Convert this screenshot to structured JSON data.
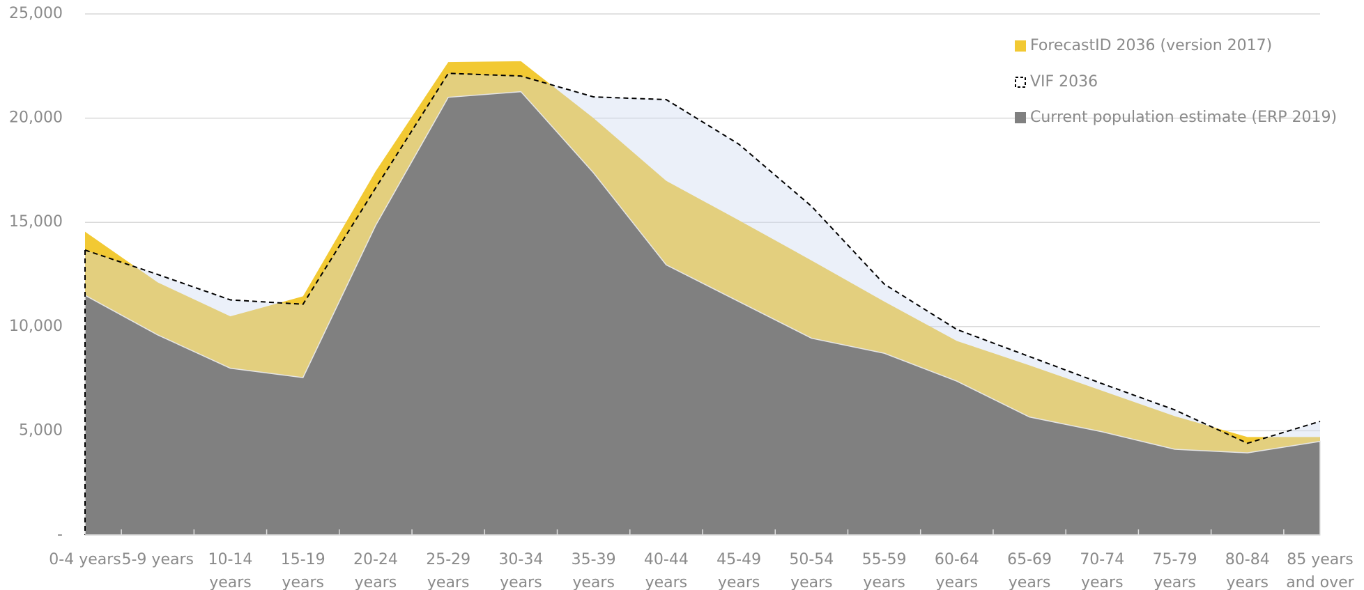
{
  "chart_data": {
    "type": "area",
    "categories": [
      "0-4 years",
      "5-9 years",
      "10-14 years",
      "15-19 years",
      "20-24 years",
      "25-29 years",
      "30-34 years",
      "35-39 years",
      "40-44 years",
      "45-49 years",
      "50-54 years",
      "55-59 years",
      "60-64 years",
      "65-69 years",
      "70-74 years",
      "75-79 years",
      "80-84 years",
      "85 years and over"
    ],
    "series": [
      {
        "name": "ForecastID 2036 (version 2017)",
        "color": "#f2c933",
        "values": [
          14550,
          12120,
          10490,
          11450,
          17450,
          22690,
          22730,
          20000,
          16990,
          15100,
          13170,
          11200,
          9310,
          8140,
          6920,
          5700,
          4700,
          4700
        ]
      },
      {
        "name": "VIF 2036",
        "color": "#000000",
        "values": [
          13670,
          12500,
          11280,
          11070,
          16650,
          22150,
          22020,
          21020,
          20890,
          18750,
          15770,
          12040,
          9860,
          8560,
          7260,
          6000,
          4400,
          5450
        ]
      },
      {
        "name": "Current population estimate (ERP 2019)",
        "color": "#808080",
        "values": [
          11500,
          9600,
          8000,
          7550,
          14850,
          21000,
          21270,
          17370,
          12960,
          11200,
          9440,
          8720,
          7380,
          5660,
          4950,
          4110,
          3940,
          4490
        ]
      }
    ],
    "ylim": [
      0,
      25000
    ],
    "yticks": [
      {
        "value": 0,
        "label": "-"
      },
      {
        "value": 5000,
        "label": "5,000"
      },
      {
        "value": 10000,
        "label": "10,000"
      },
      {
        "value": 15000,
        "label": "15,000"
      },
      {
        "value": 20000,
        "label": "20,000"
      },
      {
        "value": 25000,
        "label": "25,000"
      }
    ],
    "grid": true
  }
}
